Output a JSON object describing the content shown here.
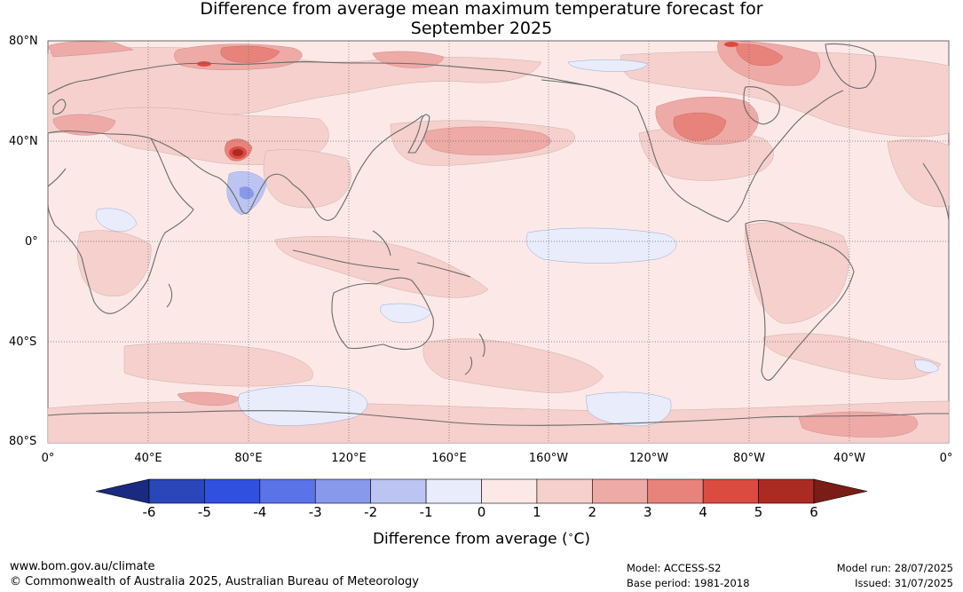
{
  "title_line1": "Difference from average mean maximum temperature forecast for",
  "title_line2": "September 2025",
  "lat_labels": [
    "80°N",
    "40°N",
    "0°",
    "40°S",
    "80°S"
  ],
  "lon_labels": [
    "0°",
    "40°E",
    "80°E",
    "120°E",
    "160°E",
    "160°W",
    "120°W",
    "80°W",
    "40°W",
    "0°"
  ],
  "colorbar": {
    "ticks": [
      "-6",
      "-5",
      "-4",
      "-3",
      "-2",
      "-1",
      "0",
      "1",
      "2",
      "3",
      "4",
      "5",
      "6"
    ],
    "colors": [
      "#1a2a80",
      "#2a46b8",
      "#3050e0",
      "#5a74e8",
      "#8898ea",
      "#bcc5f2",
      "#e8ecfb",
      "#fce9e7",
      "#f5d0cd",
      "#eeaaa6",
      "#e8837c",
      "#dc4b40",
      "#ab2b22",
      "#7a1d16"
    ],
    "label": "Difference from average (",
    "label_symbol": "∘",
    "label_unit": "C)"
  },
  "footer": {
    "url": "www.bom.gov.au/climate",
    "copyright": "© Commonwealth of Australia 2025, Australian Bureau of Meteorology",
    "model": "Model: ACCESS-S2",
    "base_period": "Base period: 1981-2018",
    "model_run": "Model run: 28/07/2025",
    "issued": "Issued: 31/07/2025"
  }
}
